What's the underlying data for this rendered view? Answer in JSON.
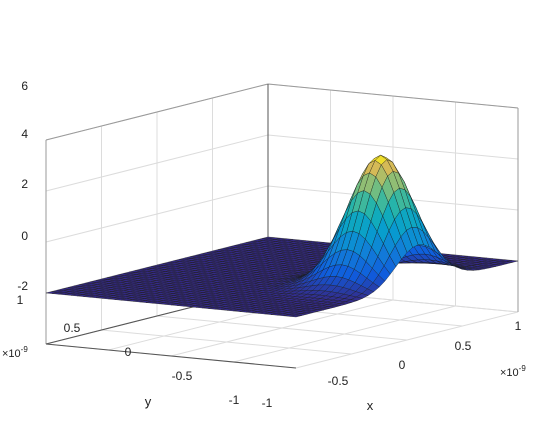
{
  "chart_data": {
    "type": "surface",
    "title": "",
    "xlabel": "x",
    "ylabel": "y",
    "x_ticks": [
      "-1",
      "-0.5",
      "0",
      "0.5",
      "1"
    ],
    "y_ticks": [
      "-1",
      "-0.5",
      "0",
      "0.5",
      "1"
    ],
    "z_ticks": [
      "-2",
      "0",
      "2",
      "4",
      "6"
    ],
    "x_multiplier": "×10",
    "x_multiplier_exp": "-9",
    "y_multiplier": "×10",
    "y_multiplier_exp": "-9",
    "xlim": [
      -1e-09,
      1e-09
    ],
    "ylim": [
      -1e-09,
      1e-09
    ],
    "zlim": [
      -2,
      6
    ],
    "grid": true,
    "colormap": "parula",
    "surface": {
      "function": "gaussian peak",
      "peak_height": 5.0,
      "peak_x": 7e-10,
      "peak_y": 1e-10,
      "width_sigma": 2e-10,
      "mesh_lines": 40
    }
  }
}
